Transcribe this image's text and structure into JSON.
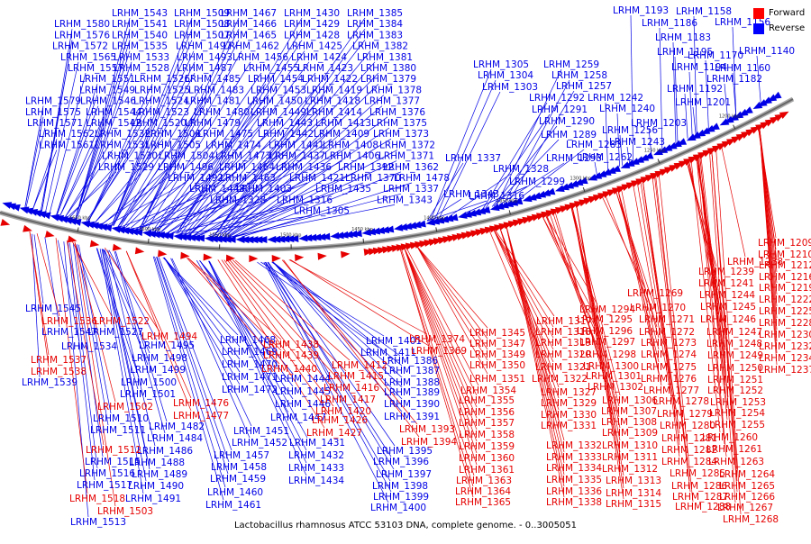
{
  "caption": "Lactobacillus rhamnosus ATCC 53103 DNA, complete genome. - 0..3005051",
  "legend": [
    {
      "label": "Forward",
      "color": "#ff0000"
    },
    {
      "label": "Reverse",
      "color": "#0000ff"
    }
  ],
  "colors": {
    "forward": "#e60000",
    "reverse": "#0000e6",
    "backbone": "#666666"
  },
  "scale_ticks": [
    "1200 kbp",
    "1250 kbp",
    "1300 kbp",
    "1350 kbp",
    "1400 kbp",
    "1450 kbp",
    "1500 kbp",
    "1550 kbp",
    "1600 kbp",
    "1650 kbp"
  ],
  "reverse_labels_top": [
    "LRHM_1543",
    "LRHM_1509",
    "LRHM_1467",
    "LRHM_1430",
    "LRHM_1385",
    "LRHM_1580",
    "LRHM_1541",
    "LRHM_1508",
    "LRHM_1466",
    "LRHM_1429",
    "LRHM_1384",
    "LRHM_1576",
    "LRHM_1540",
    "LRHM_1507",
    "LRHM_1465",
    "LRHM_1428",
    "LRHM_1383",
    "LRHM_1572",
    "LRHM_1535",
    "LRHM_1497",
    "LRHM_1462",
    "LRHM_1425",
    "LRHM_1382",
    "LRHM_1565",
    "LRHM_1533",
    "LRHM_1493",
    "LRHM_1456",
    "LRHM_1424",
    "LRHM_1381",
    "LRHM_1557",
    "LRHM_1528",
    "LRHM_1487",
    "LRHM_1455",
    "LRHM_1423",
    "LRHM_1380",
    "LRHM_1551",
    "LRHM_1526",
    "LRHM_1485",
    "LRHM_1454",
    "LRHM_1422",
    "LRHM_1379",
    "LRHM_1549",
    "LRHM_1525",
    "LRHM_1483",
    "LRHM_1453",
    "LRHM_1419",
    "LRHM_1378",
    "LRHM_1579",
    "LRHM_1546",
    "LRHM_1524",
    "LRHM_1481",
    "LRHM_1450",
    "LRHM_1418",
    "LRHM_1377",
    "LRHM_1575",
    "LRHM_1544",
    "LRHM_1523",
    "LRHM_1480",
    "LRHM_1449",
    "LRHM_1414",
    "LRHM_1376",
    "LRHM_1571",
    "LRHM_1542",
    "LRHM_1520",
    "LRHM_1479",
    "LRHM_1443",
    "LRHM_1413",
    "LRHM_1375",
    "LRHM_1562",
    "LRHM_1532",
    "LRHM_1506",
    "LRHM_1475",
    "LRHM_1442",
    "LRHM_1409",
    "LRHM_1373",
    "LRHM_1561",
    "LRHM_1531",
    "LRHM_1505",
    "LRHM_1474",
    "LRHM_1441",
    "LRHM_1408",
    "LRHM_1372",
    "LRHM_1530",
    "LRHM_1504",
    "LRHM_1473",
    "LRHM_1437",
    "LRHM_1406",
    "LRHM_1371",
    "LRHM_1529",
    "LRHM_1496",
    "LRHM_1464",
    "LRHM_1436",
    "LRHM_1392",
    "LRHM_1362",
    "LRHM_1492",
    "LRHM_1463",
    "LRHM_1421",
    "LRHM_1370",
    "LRHM_1478",
    "LRHM_1448",
    "LRHM_1403",
    "LRHM_1435",
    "LRHM_1337",
    "LRHM_1328",
    "LRHM_1316",
    "LRHM_1343",
    "LRHM_1305",
    "LRHM_1304",
    "LRHM_1303",
    "LRHM_1259",
    "LRHM_1258",
    "LRHM_1257",
    "LRHM_1292",
    "LRHM_1291",
    "LRHM_1290",
    "LRHM_1289",
    "LRHM_1283",
    "LRHM_1293",
    "LRHM_1299",
    "LRHM_1242",
    "LRHM_1240",
    "LRHM_1256",
    "LRHM_1243",
    "LRHM_1262",
    "LRHM_1193",
    "LRHM_1158",
    "LRHM_1186",
    "LRHM_1156",
    "LRHM_1183",
    "LRHM_1195",
    "LRHM_1170",
    "LRHM_1140",
    "LRHM_1194",
    "LRHM_1160",
    "LRHM_1182",
    "LRHM_1192",
    "LRHM_1201",
    "LRHM_1203"
  ],
  "reverse_labels_bottom": [
    "LRHM_1545",
    "LRHM_1547",
    "LRHM_1534",
    "LRHM_1539",
    "LRHM_1527",
    "LRHM_1495",
    "LRHM_1498",
    "LRHM_1499",
    "LRHM_1500",
    "LRHM_1501",
    "LRHM_1510",
    "LRHM_1511",
    "LRHM_1515",
    "LRHM_1516",
    "LRHM_1517",
    "LRHM_1513",
    "LRHM_1482",
    "LRHM_1484",
    "LRHM_1486",
    "LRHM_1488",
    "LRHM_1489",
    "LRHM_1490",
    "LRHM_1491",
    "LRHM_1468",
    "LRHM_1469",
    "LRHM_1470",
    "LRHM_1471",
    "LRHM_1472",
    "LRHM_1451",
    "LRHM_1452",
    "LRHM_1457",
    "LRHM_1458",
    "LRHM_1459",
    "LRHM_1460",
    "LRHM_1461",
    "LRHM_1444",
    "LRHM_1445",
    "LRHM_1446",
    "LRHM_1447",
    "LRHM_1431",
    "LRHM_1432",
    "LRHM_1433",
    "LRHM_1434",
    "LRHM_1401",
    "LRHM_1411",
    "LRHM_1386",
    "LRHM_1387",
    "LRHM_1388",
    "LRHM_1389",
    "LRHM_1390",
    "LRHM_1391",
    "LRHM_1395",
    "LRHM_1396",
    "LRHM_1397",
    "LRHM_1398",
    "LRHM_1399",
    "LRHM_1400"
  ],
  "forward_labels_bottom": [
    "LRHM_1536",
    "LRHM_1522",
    "LRHM_1494",
    "LRHM_1537",
    "LRHM_1538",
    "LRHM_1476",
    "LRHM_1477",
    "LRHM_1502",
    "LRHM_1512",
    "LRHM_1518",
    "LRHM_1503",
    "LRHM_1438",
    "LRHM_1439",
    "LRHM_1440",
    "LRHM_1412",
    "LRHM_1415",
    "LRHM_1416",
    "LRHM_1417",
    "LRHM_1420",
    "LRHM_1426",
    "LRHM_1427",
    "LRHM_1374",
    "LRHM_1369",
    "LRHM_1393",
    "LRHM_1394",
    "LRHM_1345",
    "LRHM_1347",
    "LRHM_1349",
    "LRHM_1350",
    "LRHM_1351",
    "LRHM_1354",
    "LRHM_1355",
    "LRHM_1356",
    "LRHM_1357",
    "LRHM_1358",
    "LRHM_1359",
    "LRHM_1360",
    "LRHM_1361",
    "LRHM_1363",
    "LRHM_1364",
    "LRHM_1365",
    "LRHM_1317",
    "LRHM_1318",
    "LRHM_1319",
    "LRHM_1320",
    "LRHM_1321",
    "LRHM_1322",
    "LRHM_1327",
    "LRHM_1329",
    "LRHM_1330",
    "LRHM_1331",
    "LRHM_1332",
    "LRHM_1333",
    "LRHM_1334",
    "LRHM_1335",
    "LRHM_1336",
    "LRHM_1338",
    "LRHM_1294",
    "LRHM_1295",
    "LRHM_1296",
    "LRHM_1297",
    "LRHM_1298",
    "LRHM_1300",
    "LRHM_1301",
    "LRHM_1302",
    "LRHM_1306",
    "LRHM_1307",
    "LRHM_1308",
    "LRHM_1309",
    "LRHM_1310",
    "LRHM_1311",
    "LRHM_1312",
    "LRHM_1313",
    "LRHM_1314",
    "LRHM_1315",
    "LRHM_1269",
    "LRHM_1270",
    "LRHM_1271",
    "LRHM_1272",
    "LRHM_1273",
    "LRHM_1274",
    "LRHM_1275",
    "LRHM_1276",
    "LRHM_1277",
    "LRHM_1278",
    "LRHM_1279",
    "LRHM_1280",
    "LRHM_1281",
    "LRHM_1282",
    "LRHM_1284",
    "LRHM_1285",
    "LRHM_1286",
    "LRHM_1287",
    "LRHM_1288",
    "LRHM_1238",
    "LRHM_1239",
    "LRHM_1241",
    "LRHM_1244",
    "LRHM_1245",
    "LRHM_1246",
    "LRHM_1247",
    "LRHM_1248",
    "LRHM_1249",
    "LRHM_1250",
    "LRHM_1251",
    "LRHM_1252",
    "LRHM_1253",
    "LRHM_1254",
    "LRHM_1255",
    "LRHM_1260",
    "LRHM_1261",
    "LRHM_1263",
    "LRHM_1264",
    "LRHM_1265",
    "LRHM_1266",
    "LRHM_1267",
    "LRHM_1268",
    "LRHM_1209",
    "LRHM_1210",
    "LRHM_1212",
    "LRHM_1216",
    "LRHM_1219",
    "LRHM_1222",
    "LRHM_1225",
    "LRHM_1228",
    "LRHM_1230",
    "LRHM_1232",
    "LRHM_1234",
    "LRHM_1237"
  ]
}
